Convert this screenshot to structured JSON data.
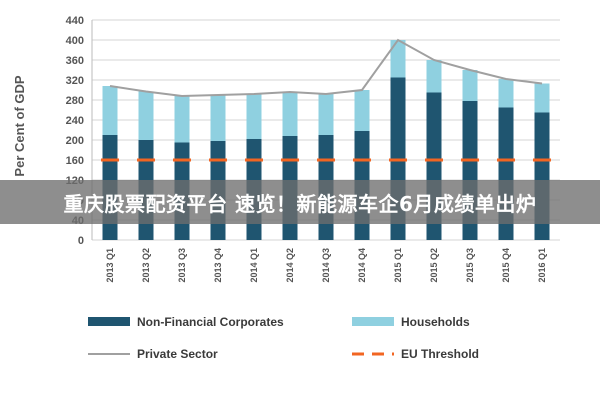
{
  "overlay_caption": "重庆股票配资平台 速览！新能源车企6月成绩单出炉",
  "colors": {
    "non_financial": "#1f5570",
    "households": "#8fd0e0",
    "private_sector": "#a0a0a0",
    "eu_threshold": "#f26522",
    "grid": "#d6d6d6",
    "axis_text": "#555555"
  },
  "chart_data": {
    "type": "bar",
    "stacked": true,
    "ylabel": "Per Cent of GDP",
    "xlabel": "",
    "title": "",
    "ylim": [
      0,
      440
    ],
    "yticks": [
      0,
      40,
      80,
      120,
      160,
      200,
      240,
      280,
      320,
      360,
      400,
      440
    ],
    "grid": true,
    "legend_position": "bottom",
    "categories": [
      "2013 Q1",
      "2013 Q2",
      "2013 Q3",
      "2013 Q4",
      "2014 Q1",
      "2014 Q2",
      "2014 Q3",
      "2014 Q4",
      "2015 Q1",
      "2015 Q2",
      "2015 Q3",
      "2015 Q4",
      "2016 Q1"
    ],
    "series": [
      {
        "name": "Non-Financial Corporates",
        "kind": "bar",
        "values": [
          210,
          200,
          195,
          198,
          202,
          208,
          210,
          218,
          325,
          295,
          278,
          265,
          255
        ]
      },
      {
        "name": "Households",
        "kind": "bar",
        "values": [
          98,
          97,
          93,
          92,
          90,
          88,
          82,
          82,
          75,
          65,
          62,
          57,
          58
        ]
      },
      {
        "name": "Private Sector",
        "kind": "line",
        "values": [
          308,
          297,
          288,
          290,
          292,
          296,
          292,
          300,
          400,
          360,
          340,
          322,
          313
        ]
      },
      {
        "name": "EU Threshold",
        "kind": "dashed-line",
        "values": [
          160,
          160,
          160,
          160,
          160,
          160,
          160,
          160,
          160,
          160,
          160,
          160,
          160
        ]
      }
    ]
  }
}
